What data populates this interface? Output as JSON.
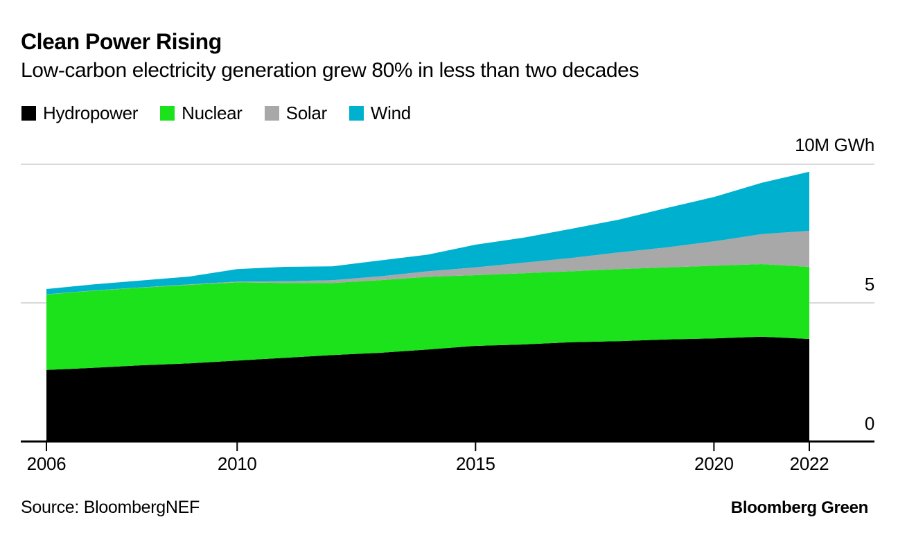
{
  "header": {
    "title": "Clean Power Rising",
    "subtitle": "Low-carbon electricity generation grew 80% in less than two decades"
  },
  "legend": {
    "items": [
      {
        "label": "Hydropower",
        "color": "#000000"
      },
      {
        "label": "Nuclear",
        "color": "#1ce21c"
      },
      {
        "label": "Solar",
        "color": "#a8a8a8"
      },
      {
        "label": "Wind",
        "color": "#00b0cf"
      }
    ]
  },
  "chart_data": {
    "type": "area",
    "stacked": true,
    "title": "Clean Power Rising",
    "subtitle": "Low-carbon electricity generation grew 80% in less than two decades",
    "unit_label": "10M GWh",
    "grid": "horizontal",
    "legend_position": "top",
    "x": [
      2006,
      2007,
      2008,
      2009,
      2010,
      2011,
      2012,
      2013,
      2014,
      2015,
      2016,
      2017,
      2018,
      2019,
      2020,
      2021,
      2022
    ],
    "series": [
      {
        "name": "Hydropower",
        "color": "#000000",
        "values": [
          2.58,
          2.66,
          2.75,
          2.82,
          2.92,
          3.02,
          3.12,
          3.2,
          3.32,
          3.45,
          3.5,
          3.58,
          3.62,
          3.68,
          3.72,
          3.78,
          3.7
        ]
      },
      {
        "name": "Nuclear",
        "color": "#1ce21c",
        "values": [
          2.72,
          2.78,
          2.8,
          2.83,
          2.82,
          2.7,
          2.6,
          2.62,
          2.62,
          2.55,
          2.57,
          2.56,
          2.6,
          2.6,
          2.62,
          2.62,
          2.6
        ]
      },
      {
        "name": "Solar",
        "color": "#a8a8a8",
        "values": [
          0.01,
          0.01,
          0.01,
          0.02,
          0.03,
          0.06,
          0.1,
          0.14,
          0.2,
          0.28,
          0.38,
          0.48,
          0.6,
          0.72,
          0.88,
          1.08,
          1.3
        ]
      },
      {
        "name": "Wind",
        "color": "#00b0cf",
        "values": [
          0.19,
          0.22,
          0.25,
          0.28,
          0.45,
          0.52,
          0.5,
          0.57,
          0.6,
          0.82,
          0.9,
          1.05,
          1.18,
          1.42,
          1.6,
          1.85,
          2.13
        ]
      }
    ],
    "ylim": [
      0,
      10
    ],
    "y_ticks": [
      {
        "value": 0,
        "label": "0"
      },
      {
        "value": 5,
        "label": "5"
      },
      {
        "value": 10,
        "label": "10M GWh"
      }
    ],
    "x_ticks": [
      {
        "value": 2006,
        "label": "2006"
      },
      {
        "value": 2010,
        "label": "2010"
      },
      {
        "value": 2015,
        "label": "2015"
      },
      {
        "value": 2020,
        "label": "2020"
      },
      {
        "value": 2022,
        "label": "2022"
      }
    ],
    "colors": {
      "gridline": "#d9d9d9",
      "axis": "#000000"
    }
  },
  "footer": {
    "source": "Source: BloombergNEF",
    "brand": "Bloomberg Green"
  }
}
